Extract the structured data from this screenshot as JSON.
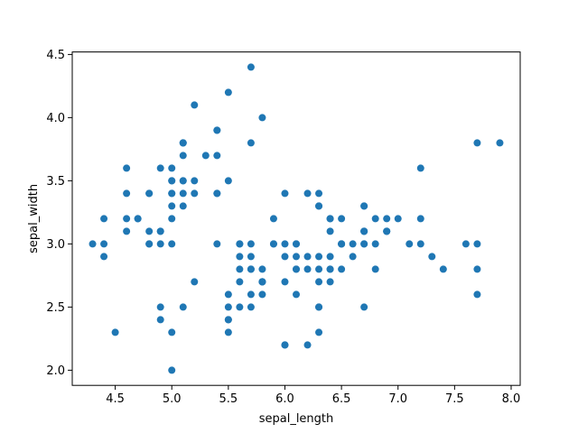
{
  "chart_data": {
    "type": "scatter",
    "xlabel": "sepal_length",
    "ylabel": "sepal_width",
    "xlim": [
      4.12,
      8.08
    ],
    "ylim": [
      1.88,
      4.52
    ],
    "xticks": [
      4.5,
      5.0,
      5.5,
      6.0,
      6.5,
      7.0,
      7.5,
      8.0
    ],
    "xtick_labels": [
      "4.5",
      "5.0",
      "5.5",
      "6.0",
      "6.5",
      "7.0",
      "7.5",
      "8.0"
    ],
    "yticks": [
      2.0,
      2.5,
      3.0,
      3.5,
      4.0,
      4.5
    ],
    "ytick_labels": [
      "2.0",
      "2.5",
      "3.0",
      "3.5",
      "4.0",
      "4.5"
    ],
    "grid": false,
    "point_color": "#1f77b4",
    "points": [
      [
        5.1,
        3.5
      ],
      [
        4.9,
        3.0
      ],
      [
        4.7,
        3.2
      ],
      [
        4.6,
        3.1
      ],
      [
        5.0,
        3.6
      ],
      [
        5.4,
        3.9
      ],
      [
        4.6,
        3.4
      ],
      [
        5.0,
        3.4
      ],
      [
        4.4,
        2.9
      ],
      [
        4.9,
        3.1
      ],
      [
        5.4,
        3.7
      ],
      [
        4.8,
        3.4
      ],
      [
        4.8,
        3.0
      ],
      [
        4.3,
        3.0
      ],
      [
        5.8,
        4.0
      ],
      [
        5.7,
        4.4
      ],
      [
        5.4,
        3.9
      ],
      [
        5.1,
        3.5
      ],
      [
        5.7,
        3.8
      ],
      [
        5.1,
        3.8
      ],
      [
        5.4,
        3.4
      ],
      [
        5.1,
        3.7
      ],
      [
        4.6,
        3.6
      ],
      [
        5.1,
        3.3
      ],
      [
        4.8,
        3.4
      ],
      [
        5.0,
        3.0
      ],
      [
        5.0,
        3.4
      ],
      [
        5.2,
        3.5
      ],
      [
        5.2,
        3.4
      ],
      [
        4.7,
        3.2
      ],
      [
        4.8,
        3.1
      ],
      [
        5.4,
        3.4
      ],
      [
        5.2,
        4.1
      ],
      [
        5.5,
        4.2
      ],
      [
        4.9,
        3.1
      ],
      [
        5.0,
        3.2
      ],
      [
        5.5,
        3.5
      ],
      [
        4.9,
        3.6
      ],
      [
        4.4,
        3.0
      ],
      [
        5.1,
        3.4
      ],
      [
        5.0,
        3.5
      ],
      [
        4.5,
        2.3
      ],
      [
        4.4,
        3.2
      ],
      [
        5.0,
        3.5
      ],
      [
        5.1,
        3.8
      ],
      [
        4.8,
        3.0
      ],
      [
        5.1,
        3.8
      ],
      [
        4.6,
        3.2
      ],
      [
        5.3,
        3.7
      ],
      [
        5.0,
        3.3
      ],
      [
        7.0,
        3.2
      ],
      [
        6.4,
        3.2
      ],
      [
        6.9,
        3.1
      ],
      [
        5.5,
        2.3
      ],
      [
        6.5,
        2.8
      ],
      [
        5.7,
        2.8
      ],
      [
        6.3,
        3.3
      ],
      [
        4.9,
        2.4
      ],
      [
        6.6,
        2.9
      ],
      [
        5.2,
        2.7
      ],
      [
        5.0,
        2.0
      ],
      [
        5.9,
        3.0
      ],
      [
        6.0,
        2.2
      ],
      [
        6.1,
        2.9
      ],
      [
        5.6,
        2.9
      ],
      [
        6.7,
        3.1
      ],
      [
        5.6,
        3.0
      ],
      [
        5.8,
        2.7
      ],
      [
        6.2,
        2.2
      ],
      [
        5.6,
        2.5
      ],
      [
        5.9,
        3.2
      ],
      [
        6.1,
        2.8
      ],
      [
        6.3,
        2.5
      ],
      [
        6.1,
        2.8
      ],
      [
        6.4,
        2.9
      ],
      [
        6.6,
        3.0
      ],
      [
        6.8,
        2.8
      ],
      [
        6.7,
        3.0
      ],
      [
        6.0,
        2.9
      ],
      [
        5.7,
        2.6
      ],
      [
        5.5,
        2.4
      ],
      [
        5.5,
        2.4
      ],
      [
        5.8,
        2.7
      ],
      [
        6.0,
        2.7
      ],
      [
        5.4,
        3.0
      ],
      [
        6.0,
        3.4
      ],
      [
        6.7,
        3.1
      ],
      [
        6.3,
        2.3
      ],
      [
        5.6,
        3.0
      ],
      [
        5.5,
        2.5
      ],
      [
        5.5,
        2.6
      ],
      [
        6.1,
        3.0
      ],
      [
        5.8,
        2.6
      ],
      [
        5.0,
        2.3
      ],
      [
        5.6,
        2.7
      ],
      [
        5.7,
        3.0
      ],
      [
        5.7,
        2.9
      ],
      [
        6.2,
        2.9
      ],
      [
        5.1,
        2.5
      ],
      [
        5.7,
        2.8
      ],
      [
        6.3,
        3.3
      ],
      [
        5.8,
        2.7
      ],
      [
        7.1,
        3.0
      ],
      [
        6.3,
        2.9
      ],
      [
        6.5,
        3.0
      ],
      [
        7.6,
        3.0
      ],
      [
        4.9,
        2.5
      ],
      [
        7.3,
        2.9
      ],
      [
        6.7,
        2.5
      ],
      [
        7.2,
        3.6
      ],
      [
        6.5,
        3.2
      ],
      [
        6.4,
        2.7
      ],
      [
        6.8,
        3.0
      ],
      [
        5.7,
        2.5
      ],
      [
        5.8,
        2.8
      ],
      [
        6.4,
        3.2
      ],
      [
        6.5,
        3.0
      ],
      [
        7.7,
        3.8
      ],
      [
        7.7,
        2.6
      ],
      [
        6.0,
        2.2
      ],
      [
        6.9,
        3.2
      ],
      [
        5.6,
        2.8
      ],
      [
        7.7,
        2.8
      ],
      [
        6.3,
        2.7
      ],
      [
        6.7,
        3.3
      ],
      [
        7.2,
        3.2
      ],
      [
        6.2,
        2.8
      ],
      [
        6.1,
        3.0
      ],
      [
        6.4,
        2.8
      ],
      [
        7.2,
        3.0
      ],
      [
        7.4,
        2.8
      ],
      [
        7.9,
        3.8
      ],
      [
        6.4,
        2.8
      ],
      [
        6.3,
        2.8
      ],
      [
        6.1,
        2.6
      ],
      [
        7.7,
        3.0
      ],
      [
        6.3,
        3.4
      ],
      [
        6.4,
        3.1
      ],
      [
        6.0,
        3.0
      ],
      [
        6.9,
        3.1
      ],
      [
        6.7,
        3.1
      ],
      [
        6.9,
        3.1
      ],
      [
        5.8,
        2.7
      ],
      [
        6.8,
        3.2
      ],
      [
        6.7,
        3.3
      ],
      [
        6.7,
        3.0
      ],
      [
        6.3,
        2.5
      ],
      [
        6.5,
        3.0
      ],
      [
        6.2,
        3.4
      ],
      [
        5.9,
        3.0
      ]
    ]
  }
}
